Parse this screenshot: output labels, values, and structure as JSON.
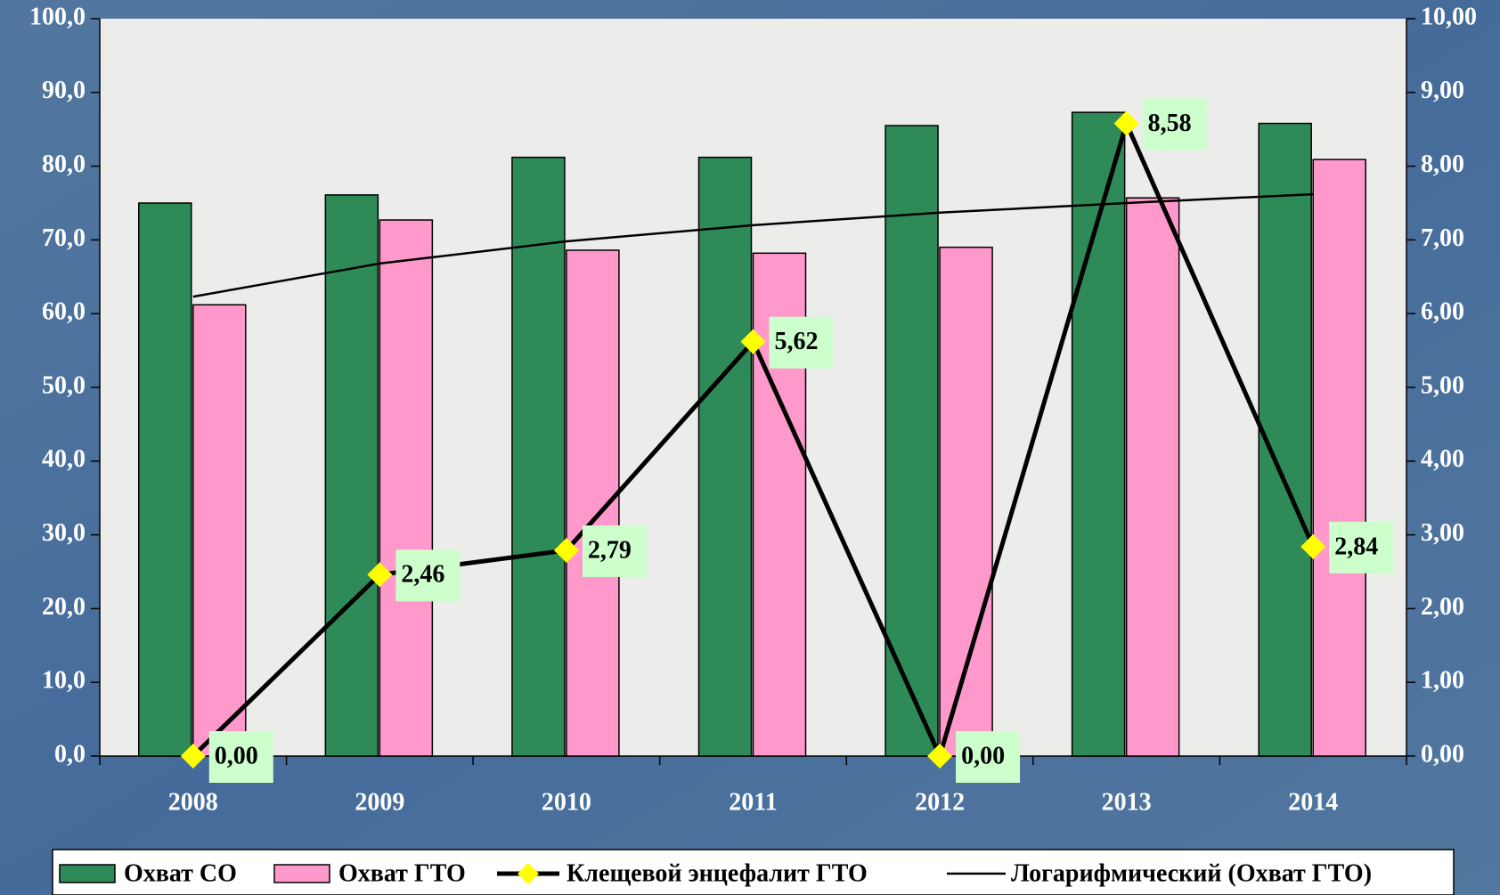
{
  "chart_data": {
    "type": "bar-line",
    "categories": [
      "2008",
      "2009",
      "2010",
      "2011",
      "2012",
      "2013",
      "2014"
    ],
    "series": [
      {
        "name": "Охват СО",
        "color": "#2e8b57",
        "kind": "bar",
        "values": [
          75.0,
          76.1,
          81.2,
          81.2,
          85.5,
          87.3,
          85.8
        ]
      },
      {
        "name": "Охват ГТО",
        "color": "#ff99cc",
        "kind": "bar",
        "values": [
          61.2,
          72.7,
          68.6,
          68.2,
          69.0,
          75.7,
          80.9
        ]
      },
      {
        "name": "Клещевой энцефалит ГТО",
        "color": "#000000",
        "marker_color": "#ffff00",
        "kind": "line",
        "axis": "y2",
        "values": [
          0.0,
          2.46,
          2.79,
          5.62,
          0.0,
          8.58,
          2.84
        ],
        "value_labels": [
          "0,00",
          "2,46",
          "2,79",
          "5,62",
          "0,00",
          "8,58",
          "2,84"
        ]
      },
      {
        "name": "Логарифмический (Охват ГТО)",
        "color": "#000000",
        "kind": "trend",
        "values": [
          62.3,
          66.8,
          69.8,
          72.0,
          73.7,
          75.0,
          76.2
        ]
      }
    ],
    "ylim": [
      0,
      100
    ],
    "yticks": [
      {
        "value": 0,
        "label": "0,0"
      },
      {
        "value": 10,
        "label": "10,0"
      },
      {
        "value": 20,
        "label": "20,0"
      },
      {
        "value": 30,
        "label": "30,0"
      },
      {
        "value": 40,
        "label": "40,0"
      },
      {
        "value": 50,
        "label": "50,0"
      },
      {
        "value": 60,
        "label": "60,0"
      },
      {
        "value": 70,
        "label": "70,0"
      },
      {
        "value": 80,
        "label": "80,0"
      },
      {
        "value": 90,
        "label": "90,0"
      },
      {
        "value": 100,
        "label": "100,0"
      }
    ],
    "y2lim": [
      0,
      10
    ],
    "y2ticks": [
      {
        "value": 0,
        "label": "0,00"
      },
      {
        "value": 1,
        "label": "1,00"
      },
      {
        "value": 2,
        "label": "2,00"
      },
      {
        "value": 3,
        "label": "3,00"
      },
      {
        "value": 4,
        "label": "4,00"
      },
      {
        "value": 5,
        "label": "5,00"
      },
      {
        "value": 6,
        "label": "6,00"
      },
      {
        "value": 7,
        "label": "7,00"
      },
      {
        "value": 8,
        "label": "8,00"
      },
      {
        "value": 9,
        "label": "9,00"
      },
      {
        "value": 10,
        "label": "10,00"
      }
    ],
    "legend": "bottom"
  }
}
